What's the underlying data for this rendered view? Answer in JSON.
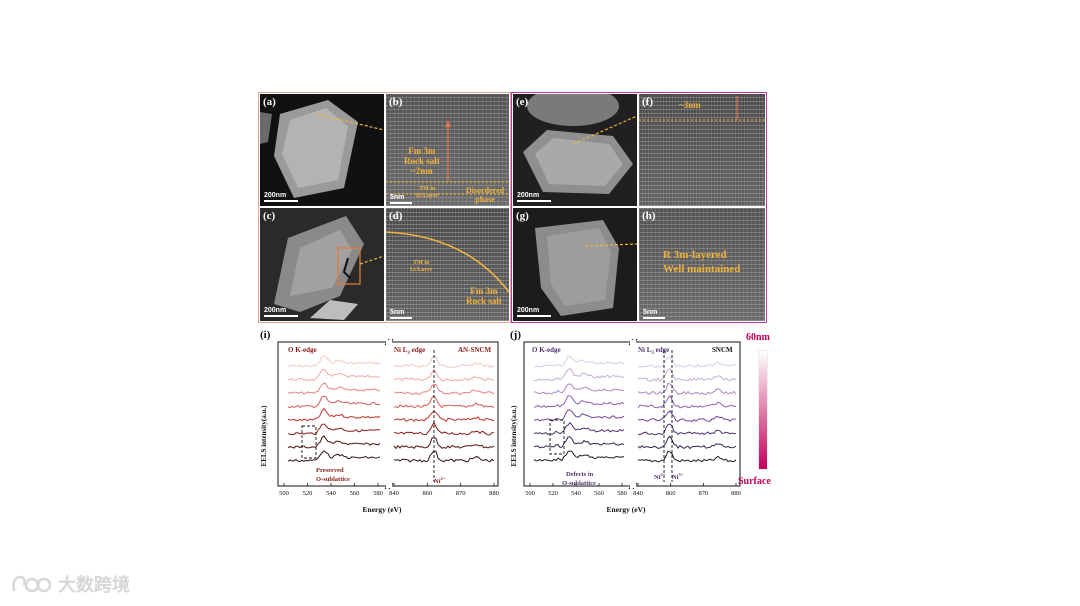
{
  "panels_top_left": {
    "a": {
      "label": "(a)",
      "scale": "200nm"
    },
    "b": {
      "label": "(b)",
      "scale": "5nm",
      "phase": "Fm 3m",
      "phase2": "Rock salt",
      "thickness": "~2nm",
      "tm": "TM in",
      "li": "Li Layer",
      "disorder1": "Disordered",
      "disorder2": "phase"
    },
    "c": {
      "label": "(c)",
      "scale": "200nm"
    },
    "d": {
      "label": "(d)",
      "scale": "5nm",
      "tm": "TM in",
      "li": "Li Layer",
      "phase": "Fm 3m",
      "phase2": "Rock salt"
    }
  },
  "panels_top_right": {
    "e": {
      "label": "(e)",
      "scale": "200nm"
    },
    "f": {
      "label": "(f)",
      "thickness": "~3nm"
    },
    "g": {
      "label": "(g)",
      "scale": "200nm"
    },
    "h": {
      "label": "(h)",
      "scale": "5nm",
      "line1": "R 3m-layered",
      "line2": "Well maintained"
    }
  },
  "eels_i": {
    "label": "(i)",
    "sample": "AN-SNCM",
    "o_edge": "O K-edge",
    "ni_edge": "Ni L",
    "ni_sub": "3",
    "ni_edge_suffix": " edge",
    "annot1": "Preserved",
    "annot2": "O-sublattice",
    "ni_state": "Ni",
    "ni_state_sup": "2+",
    "ylabel": "EELS intensity(a.u.)",
    "xlabel": "Energy (eV)",
    "xticks_left": [
      "500",
      "520",
      "540",
      "560",
      "580"
    ],
    "xticks_right": [
      "840",
      "860",
      "870",
      "880"
    ],
    "colors": [
      "#f4c6c4",
      "#efaaa7",
      "#e68580",
      "#d65a52",
      "#c0332c",
      "#8a1a15",
      "#4a1210",
      "#2a1412"
    ]
  },
  "eels_j": {
    "label": "(j)",
    "sample": "SNCM",
    "o_edge": "O K-edge",
    "ni_edge": "Ni L",
    "ni_sub": "3",
    "ni_edge_suffix": " edge",
    "annot1": "Defects in",
    "annot2": "O-sublattice",
    "ni_state1": "Ni",
    "ni_state1_sup": "2+",
    "ni_state2": "Ni",
    "ni_state2_sup": "3+",
    "ylabel": "EELS intensity(a.u.)",
    "xlabel": "Energy (eV)",
    "xticks_left": [
      "500",
      "520",
      "540",
      "560",
      "580"
    ],
    "xticks_right": [
      "840",
      "860",
      "870",
      "880"
    ],
    "colors": [
      "#d9cde6",
      "#c3add8",
      "#a887c6",
      "#8c63b1",
      "#6e4797",
      "#4e3370",
      "#35244d",
      "#1f1a2a"
    ]
  },
  "colorbar": {
    "top": "60nm",
    "bottom": "Surface",
    "color_top": "#ffffff",
    "color_bottom": "#c2005a"
  },
  "watermark": {
    "text": "大数跨境"
  }
}
